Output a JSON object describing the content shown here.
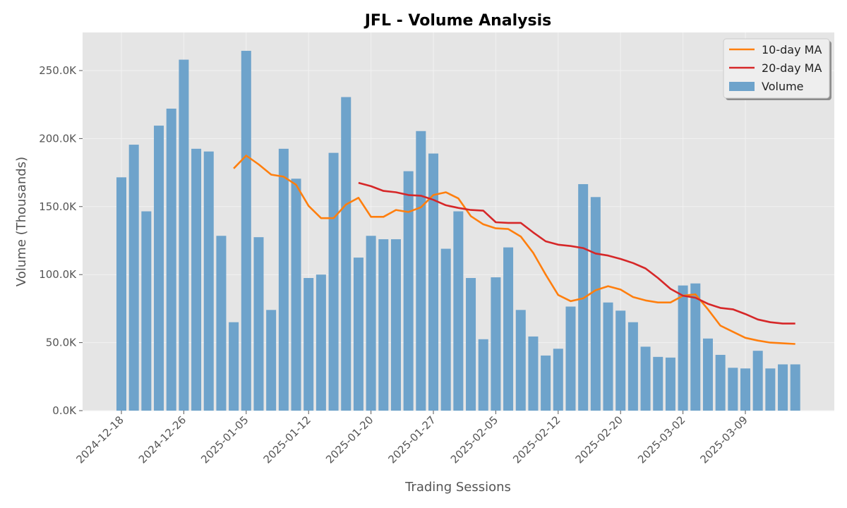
{
  "chart_data": {
    "type": "bar",
    "title": "JFL - Volume Analysis",
    "xlabel": "Trading Sessions",
    "ylabel": "Volume (Thousands)",
    "ylim": [
      0,
      278000
    ],
    "y_ticks": [
      0,
      50000,
      100000,
      150000,
      200000,
      250000
    ],
    "y_tick_labels": [
      "0.0K",
      "50.0K",
      "100.0K",
      "150.0K",
      "200.0K",
      "250.0K"
    ],
    "x_tick_labels": [
      "2024-12-18",
      "2024-12-26",
      "2025-01-05",
      "2025-01-12",
      "2025-01-20",
      "2025-01-27",
      "2025-02-05",
      "2025-02-12",
      "2025-02-20",
      "2025-03-02",
      "2025-03-09"
    ],
    "x_tick_indices": [
      0,
      5,
      10,
      15,
      20,
      25,
      30,
      35,
      40,
      45,
      50
    ],
    "grid": true,
    "legend_position": "top-right",
    "colors": {
      "volume": "#6ea3cb",
      "ma10": "#ff7f0e",
      "ma20": "#d62728",
      "plot_bg": "#e5e5e5",
      "grid": "#f2f2f2"
    },
    "series": [
      {
        "name": "Volume",
        "kind": "bar",
        "values": [
          171500,
          195500,
          146500,
          209500,
          222000,
          258000,
          192500,
          190500,
          128500,
          65000,
          264500,
          127500,
          74000,
          192500,
          170500,
          97500,
          100000,
          189500,
          230500,
          112500,
          128500,
          126000,
          126000,
          176000,
          205500,
          189000,
          119000,
          146500,
          97500,
          52500,
          98000,
          120000,
          74000,
          54500,
          40500,
          45500,
          76500,
          166500,
          157000,
          79500,
          73500,
          65000,
          47000,
          39500,
          39000,
          92000,
          93500,
          53000,
          41000,
          31500,
          31000,
          44000,
          31000,
          34000,
          34000
        ]
      },
      {
        "name": "10-day MA",
        "kind": "line",
        "values": [
          null,
          null,
          null,
          null,
          null,
          null,
          null,
          null,
          null,
          178000,
          187500,
          181000,
          173500,
          172000,
          166000,
          150500,
          141500,
          141500,
          151500,
          156500,
          142500,
          142500,
          147500,
          146000,
          149500,
          158500,
          160500,
          156000,
          143000,
          137000,
          134000,
          133500,
          128000,
          116000,
          100000,
          85000,
          80500,
          82500,
          88500,
          91500,
          89000,
          83500,
          81000,
          79500,
          79500,
          84500,
          85500,
          74500,
          62500,
          58000,
          53500,
          51500,
          50000,
          49500,
          49000
        ]
      },
      {
        "name": "20-day MA",
        "kind": "line",
        "values": [
          null,
          null,
          null,
          null,
          null,
          null,
          null,
          null,
          null,
          null,
          null,
          null,
          null,
          null,
          null,
          null,
          null,
          null,
          null,
          167500,
          165000,
          161500,
          160500,
          158500,
          158000,
          155000,
          151000,
          149000,
          147500,
          147000,
          138500,
          138000,
          138000,
          131000,
          124500,
          122000,
          121000,
          119500,
          115500,
          114000,
          111500,
          108500,
          104500,
          97500,
          89500,
          84500,
          83000,
          78500,
          75500,
          74500,
          71000,
          67000,
          65000,
          64000,
          64000
        ]
      }
    ]
  }
}
